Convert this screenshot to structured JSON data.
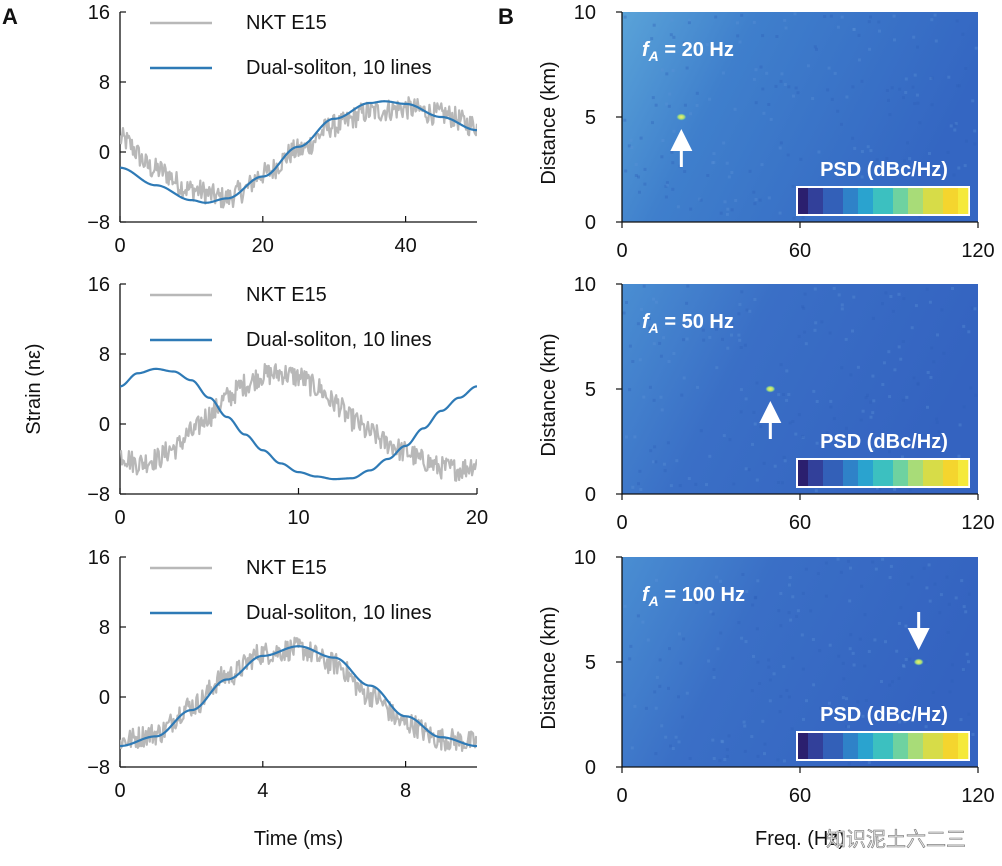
{
  "panel_labels": [
    "A",
    "B"
  ],
  "watermark": "知识泥土六二三",
  "colors": {
    "reference": "#b8b8b8",
    "soliton": "#2e7ab6",
    "heatmap_bg": "#3a6fc6",
    "heatmap_bg_light": "#55a0d6",
    "arrow": "#ffffff",
    "colorbar": [
      "#2b1f6e",
      "#32409a",
      "#3360b8",
      "#2f82c8",
      "#2aa3cf",
      "#3cc0c0",
      "#6ed2a0",
      "#a8dc78",
      "#d7dc48",
      "#f4d52e",
      "#f5e93a"
    ]
  },
  "chart_data": [
    {
      "type": "line",
      "panel": "A",
      "xlabel": "",
      "ylabel": "",
      "xlim": [
        0,
        50
      ],
      "ylim": [
        -8,
        16
      ],
      "xticks": [
        0,
        20,
        40
      ],
      "yticks": [
        -8,
        0,
        8,
        16
      ],
      "legend": "top-right",
      "series": [
        {
          "name": "NKT E15",
          "kind": "reference",
          "x": [
            0,
            5,
            10,
            15,
            17,
            20,
            25,
            30,
            35,
            40,
            45,
            50
          ],
          "y": [
            1.5,
            -2.0,
            -4.3,
            -5.3,
            -4.5,
            -2.5,
            0.2,
            3.0,
            4.6,
            5.0,
            4.3,
            3.0
          ]
        },
        {
          "name": "Dual-soliton, 10 lines",
          "kind": "soliton",
          "x": [
            0,
            5,
            10,
            12,
            15,
            20,
            25,
            30,
            35,
            37,
            40,
            45,
            50
          ],
          "y": [
            -1.8,
            -3.8,
            -5.5,
            -5.8,
            -5.3,
            -2.8,
            0.6,
            3.8,
            5.6,
            5.8,
            5.5,
            4.0,
            2.5
          ]
        }
      ]
    },
    {
      "type": "line",
      "panel": "A",
      "xlabel": "",
      "ylabel": "Strain (nε)",
      "xlim": [
        0,
        20
      ],
      "ylim": [
        -8,
        16
      ],
      "xticks": [
        0,
        10,
        20
      ],
      "yticks": [
        -8,
        0,
        8,
        16
      ],
      "legend": "top-right",
      "series": [
        {
          "name": "NKT E15",
          "kind": "reference",
          "x": [
            0,
            1,
            2,
            3,
            4,
            5,
            6,
            7,
            8,
            9,
            10,
            11,
            12,
            13,
            14,
            15,
            16,
            17,
            18,
            19,
            20
          ],
          "y": [
            -3.5,
            -4.5,
            -4.0,
            -2.8,
            -1.0,
            1.0,
            3.0,
            4.5,
            5.6,
            5.8,
            5.4,
            4.2,
            2.5,
            0.5,
            -1.0,
            -2.2,
            -3.2,
            -4.2,
            -5.0,
            -5.2,
            -4.5
          ]
        },
        {
          "name": "Dual-soliton, 10 lines",
          "kind": "soliton",
          "x": [
            0,
            1,
            2,
            3,
            4,
            5,
            6,
            7,
            8,
            9,
            10,
            11,
            12,
            13,
            14,
            15,
            16,
            17,
            18,
            19,
            20
          ],
          "y": [
            4.3,
            5.8,
            6.3,
            6.0,
            5.0,
            3.0,
            0.8,
            -1.2,
            -3.0,
            -4.5,
            -5.5,
            -6.0,
            -6.3,
            -6.2,
            -5.3,
            -4.0,
            -2.5,
            -0.5,
            1.5,
            3.0,
            4.3
          ]
        }
      ]
    },
    {
      "type": "line",
      "panel": "A",
      "xlabel": "Time (ms)",
      "ylabel": "",
      "xlim": [
        0,
        10
      ],
      "ylim": [
        -8,
        16
      ],
      "xticks": [
        0,
        4,
        8
      ],
      "yticks": [
        -8,
        0,
        8,
        16
      ],
      "legend": "top-right",
      "series": [
        {
          "name": "NKT E15",
          "kind": "reference",
          "x": [
            0,
            1,
            2,
            3,
            4,
            5,
            6,
            7,
            8,
            9,
            10
          ],
          "y": [
            -5.0,
            -4.2,
            -1.0,
            2.4,
            5.0,
            5.5,
            3.8,
            0.2,
            -3.0,
            -4.8,
            -5.2
          ]
        },
        {
          "name": "Dual-soliton, 10 lines",
          "kind": "soliton",
          "x": [
            0,
            1,
            2,
            3,
            4,
            5,
            6,
            7,
            8,
            9,
            10
          ],
          "y": [
            -5.6,
            -4.5,
            -1.5,
            2.0,
            4.7,
            5.8,
            4.5,
            1.3,
            -2.2,
            -4.6,
            -5.6
          ]
        }
      ]
    },
    {
      "type": "heatmap",
      "panel": "B",
      "annotation": "f_A = 20 Hz",
      "annotation_label": "= 20 Hz",
      "xlabel": "",
      "ylabel": "Distance (km)",
      "xlim": [
        0,
        120
      ],
      "ylim": [
        0,
        10
      ],
      "xticks": [
        0,
        60,
        120
      ],
      "yticks": [
        0,
        5,
        10
      ],
      "colorbar_label": "PSD (dBc/Hz)",
      "peak": {
        "freq": 20,
        "distance": 5
      },
      "arrow": "up"
    },
    {
      "type": "heatmap",
      "panel": "B",
      "annotation": "f_A = 50 Hz",
      "annotation_label": "= 50 Hz",
      "xlabel": "",
      "ylabel": "Distance (km)",
      "xlim": [
        0,
        120
      ],
      "ylim": [
        0,
        10
      ],
      "xticks": [
        0,
        60,
        120
      ],
      "yticks": [
        0,
        5,
        10
      ],
      "colorbar_label": "PSD (dBc/Hz)",
      "peak": {
        "freq": 50,
        "distance": 5
      },
      "arrow": "up"
    },
    {
      "type": "heatmap",
      "panel": "B",
      "annotation": "f_A = 100 Hz",
      "annotation_label": "= 100 Hz",
      "xlabel": "Freq. (Hz)",
      "ylabel": "Distance (km)",
      "xlim": [
        0,
        120
      ],
      "ylim": [
        0,
        10
      ],
      "xticks": [
        0,
        60,
        120
      ],
      "yticks": [
        0,
        5,
        10
      ],
      "colorbar_label": "PSD (dBc/Hz)",
      "peak": {
        "freq": 100,
        "distance": 5
      },
      "arrow": "down"
    }
  ]
}
